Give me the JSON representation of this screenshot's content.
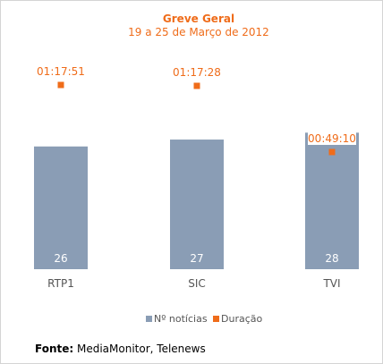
{
  "chart_data": {
    "type": "bar",
    "title": "Greve Geral",
    "subtitle": "19 a 25 de Março de 2012",
    "categories": [
      "RTP1",
      "SIC",
      "TVI"
    ],
    "series": [
      {
        "name": "Nº notícias",
        "type": "bar",
        "values": [
          26,
          27,
          28
        ],
        "color": "#8a9db5"
      },
      {
        "name": "Duração",
        "type": "scatter",
        "values": [
          "01:17:51",
          "01:17:28",
          "00:49:10"
        ],
        "seconds": [
          4671,
          4648,
          2950
        ],
        "color": "#ef6c1a"
      }
    ],
    "legend_position": "bottom",
    "grid": false
  },
  "source": {
    "label": "Fonte:",
    "text": " MediaMonitor, Telenews"
  },
  "colors": {
    "title": "#ef6c1a",
    "bar_label": "#ffffff",
    "axis_text": "#555555"
  }
}
